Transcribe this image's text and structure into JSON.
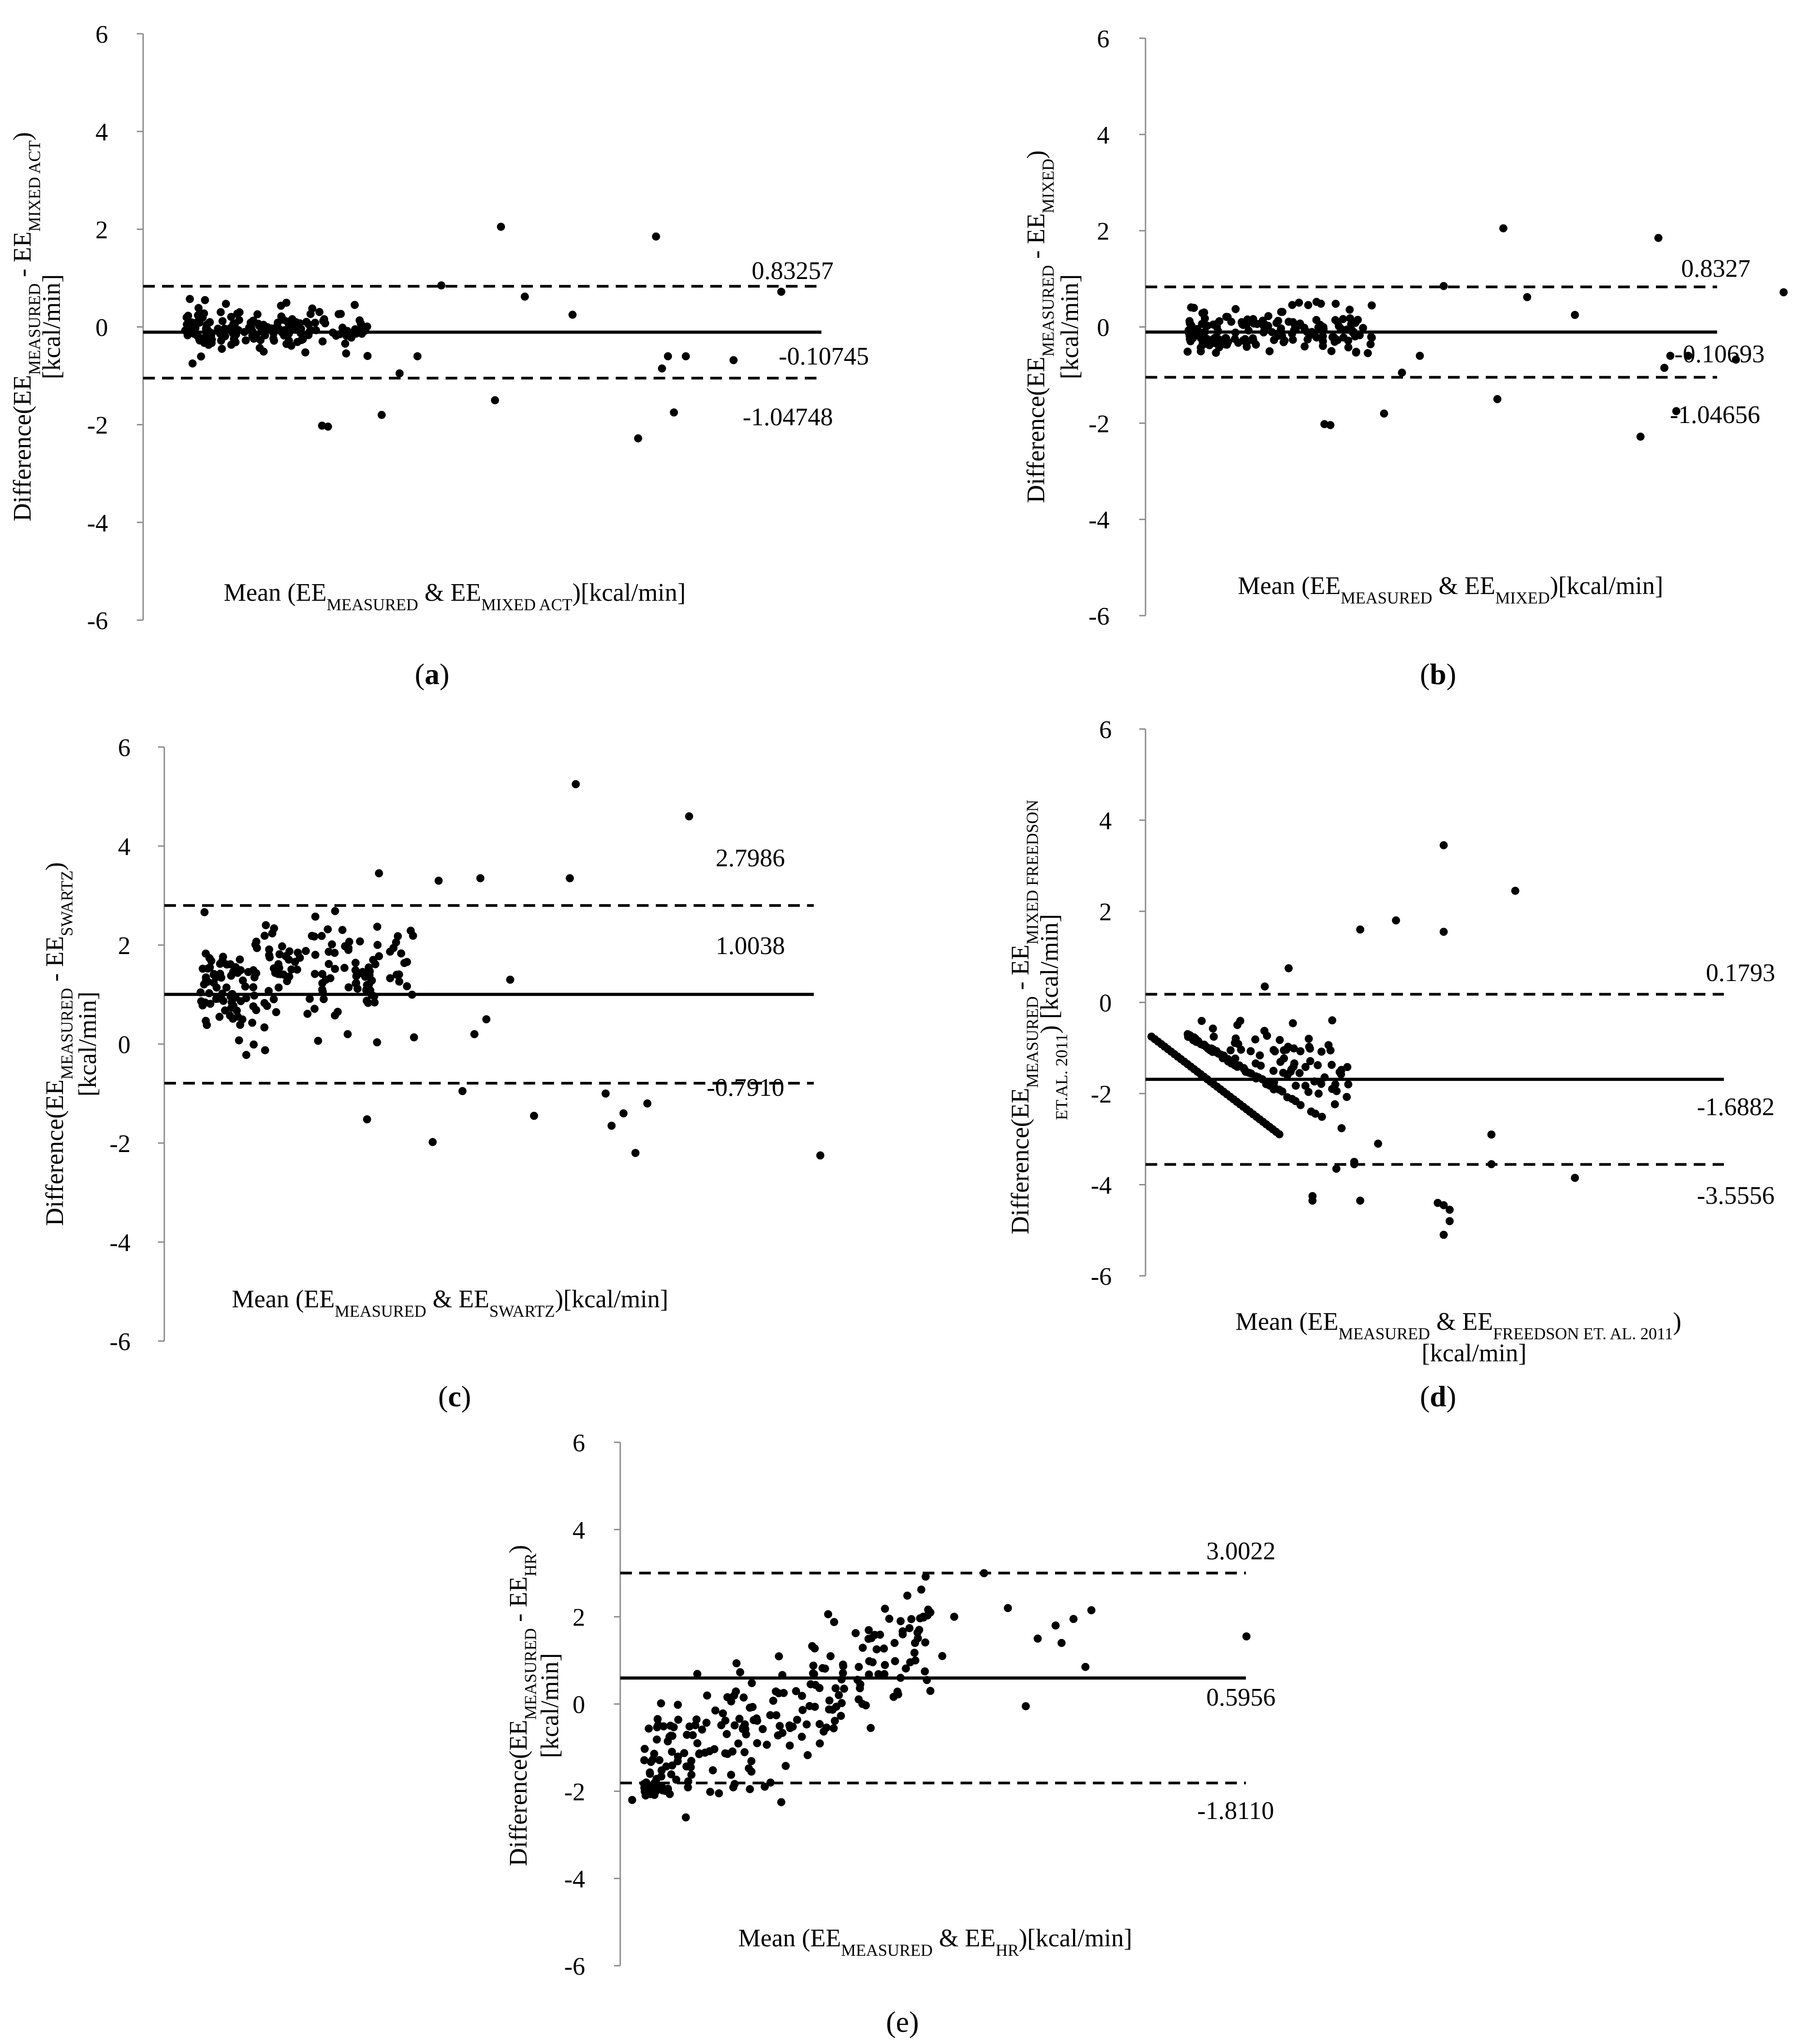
{
  "chart_data": [
    {
      "id": "a",
      "type": "scatter",
      "caption": "a",
      "y_ticks": [
        "6",
        "4",
        "2",
        "0",
        "-2",
        "-4",
        "-6"
      ],
      "ylim": [
        -6,
        6
      ],
      "y_label": {
        "line1_pre": "Difference(EE",
        "line1_sub1": "MEASURED",
        "line1_mid": " - EE",
        "line1_sub2": "MIXED ACT",
        "line1_post": ")",
        "line2": "[kcal/min]"
      },
      "x_label": {
        "pre": "Mean (EE",
        "sub1": "MEASURED",
        "mid": " & EE",
        "sub2": "MIXED ACT",
        "post": ")[kcal/min]"
      },
      "mean_diff": -0.10745,
      "upper_loa": 0.83257,
      "lower_loa": -1.04748,
      "mean_label": "-0.10745",
      "upper_label": "0.83257",
      "lower_label": "-1.04748",
      "cluster": {
        "x0": 0.35,
        "x1": 1.9,
        "center": -0.05,
        "spread": 0.55,
        "count": 170,
        "seed": 11
      },
      "points": [
        [
          3.0,
          2.05
        ],
        [
          4.3,
          1.85
        ],
        [
          5.35,
          0.72
        ],
        [
          1.5,
          -2.02
        ],
        [
          1.55,
          -2.04
        ],
        [
          2.0,
          -1.8
        ],
        [
          2.95,
          -1.5
        ],
        [
          4.15,
          -2.28
        ],
        [
          4.45,
          -1.75
        ],
        [
          4.55,
          -0.6
        ],
        [
          4.4,
          -0.6
        ],
        [
          4.95,
          -0.68
        ],
        [
          4.35,
          -0.85
        ],
        [
          3.2,
          0.62
        ],
        [
          2.5,
          0.85
        ],
        [
          3.6,
          0.25
        ],
        [
          2.3,
          -0.6
        ],
        [
          2.15,
          -0.95
        ]
      ]
    },
    {
      "id": "b",
      "type": "scatter",
      "caption": "b",
      "y_ticks": [
        "6",
        "4",
        "2",
        "0",
        "-2",
        "-4",
        "-6"
      ],
      "ylim": [
        -6,
        6
      ],
      "y_label": {
        "line1_pre": "Difference(EE",
        "line1_sub1": "MEASURED",
        "line1_mid": " - EE",
        "line1_sub2": "MIXED",
        "line1_post": ")",
        "line2": "[kcal/min]"
      },
      "x_label": {
        "pre": "Mean (EE",
        "sub1": "MEASURED",
        "mid": " & EE",
        "sub2": "MIXED",
        "post": ")[kcal/min]"
      },
      "mean_diff": -0.10693,
      "upper_loa": 0.8327,
      "lower_loa": -1.04656,
      "mean_label": "-0.10693",
      "upper_label": "0.8327",
      "lower_label": "-1.04656",
      "cluster": {
        "x0": 0.35,
        "x1": 1.9,
        "center": -0.05,
        "spread": 0.55,
        "count": 170,
        "seed": 23
      },
      "points": [
        [
          3.0,
          2.05
        ],
        [
          4.3,
          1.85
        ],
        [
          5.35,
          0.72
        ],
        [
          1.5,
          -2.02
        ],
        [
          1.55,
          -2.04
        ],
        [
          2.0,
          -1.8
        ],
        [
          2.95,
          -1.5
        ],
        [
          4.15,
          -2.28
        ],
        [
          4.45,
          -1.75
        ],
        [
          4.55,
          -0.6
        ],
        [
          4.4,
          -0.6
        ],
        [
          4.95,
          -0.68
        ],
        [
          4.35,
          -0.85
        ],
        [
          3.2,
          0.62
        ],
        [
          2.5,
          0.85
        ],
        [
          3.6,
          0.25
        ],
        [
          2.3,
          -0.6
        ],
        [
          2.15,
          -0.95
        ]
      ]
    },
    {
      "id": "c",
      "type": "scatter",
      "caption": "c",
      "y_ticks": [
        "6",
        "4",
        "2",
        "0",
        "-2",
        "-4",
        "-6"
      ],
      "ylim": [
        -6,
        6
      ],
      "y_label": {
        "line1_pre": "Difference(EE",
        "line1_sub1": "MEASURED",
        "line1_mid": " - EE",
        "line1_sub2": "SWARTZ",
        "line1_post": ")",
        "line2": "[kcal/min]"
      },
      "x_label": {
        "pre": "Mean (EE",
        "sub1": "MEASURED",
        "mid": " & EE",
        "sub2": "SWARTZ",
        "post": ")[kcal/min]"
      },
      "mean_diff": 1.0038,
      "upper_loa": 2.7986,
      "lower_loa": -0.791,
      "mean_label": "1.0038",
      "upper_label": "2.7986",
      "lower_label": "-0.7910",
      "cluster": {
        "x0": 0.3,
        "x1": 2.1,
        "center": 1.1,
        "spread": 1.4,
        "count": 190,
        "seed": 37
      },
      "points": [
        [
          3.45,
          5.25
        ],
        [
          4.4,
          4.6
        ],
        [
          3.4,
          3.35
        ],
        [
          2.3,
          3.3
        ],
        [
          2.65,
          3.35
        ],
        [
          1.8,
          3.45
        ],
        [
          5.5,
          -2.25
        ],
        [
          3.95,
          -2.2
        ],
        [
          2.25,
          -1.98
        ],
        [
          1.7,
          -1.52
        ],
        [
          3.1,
          -1.45
        ],
        [
          3.7,
          -1.0
        ],
        [
          3.75,
          -1.65
        ],
        [
          3.85,
          -1.4
        ],
        [
          4.05,
          -1.2
        ],
        [
          2.9,
          1.3
        ],
        [
          2.7,
          0.5
        ],
        [
          2.5,
          -0.95
        ],
        [
          2.6,
          0.2
        ]
      ]
    },
    {
      "id": "d",
      "type": "scatter",
      "caption": "d",
      "y_ticks": [
        "6",
        "4",
        "2",
        "0",
        "-2",
        "-4",
        "-6"
      ],
      "ylim": [
        -6,
        6
      ],
      "y_label": {
        "line1_pre": "Difference(EE",
        "line1_sub1": "MEASURED",
        "line1_mid": " - EE",
        "line1_sub2": "MIXED FREEDSON",
        "line1_post": "",
        "line2_sub": "ET.AL. 2011",
        "line2": ") [kcal/min]"
      },
      "x_label": {
        "pre": "Mean (EE",
        "sub1": "MEASURED",
        "mid": " & EE",
        "sub2": "FREEDSON ET. AL. 2011",
        "post": ")",
        "line2": "[kcal/min]"
      },
      "mean_diff": -1.6882,
      "upper_loa": 0.1793,
      "lower_loa": -3.5556,
      "mean_label": "-1.6882",
      "upper_label": "0.1793",
      "lower_label": "-3.5556",
      "cluster": {
        "x0": 0.35,
        "x1": 1.7,
        "center": -1.5,
        "spread": 1.2,
        "count": 150,
        "seed": 53
      },
      "points": [
        [
          2.5,
          3.45
        ],
        [
          3.1,
          2.45
        ],
        [
          2.5,
          1.55
        ],
        [
          1.8,
          1.6
        ],
        [
          2.1,
          1.8
        ],
        [
          1.2,
          0.75
        ],
        [
          1.0,
          0.35
        ],
        [
          3.6,
          -3.85
        ],
        [
          2.45,
          -4.4
        ],
        [
          2.5,
          -4.45
        ],
        [
          2.55,
          -4.8
        ],
        [
          2.5,
          -5.1
        ],
        [
          2.55,
          -4.55
        ],
        [
          2.9,
          -3.55
        ],
        [
          2.9,
          -2.9
        ],
        [
          1.8,
          -4.35
        ],
        [
          1.4,
          -4.25
        ],
        [
          1.4,
          -4.35
        ],
        [
          1.6,
          -3.65
        ],
        [
          1.95,
          -3.1
        ],
        [
          1.75,
          -3.5
        ],
        [
          1.75,
          -3.55
        ]
      ]
    },
    {
      "id": "e",
      "type": "scatter",
      "caption": "e",
      "y_ticks": [
        "6",
        "4",
        "2",
        "0",
        "-2",
        "-4",
        "-6"
      ],
      "ylim": [
        -6,
        6
      ],
      "y_label": {
        "line1_pre": "Difference(EE",
        "line1_sub1": "MEASURED",
        "line1_mid": " - EE",
        "line1_sub2": "HR",
        "line1_post": ")",
        "line2": "[kcal/min]"
      },
      "x_label": {
        "pre": "Mean (EE",
        "sub1": "MEASURED",
        "mid": " & EE",
        "sub2": "HR",
        "post": ")[kcal/min]"
      },
      "mean_diff": 0.5956,
      "upper_loa": 3.0022,
      "lower_loa": -1.811,
      "mean_label": "0.5956",
      "upper_label": "3.0022",
      "lower_label": "-1.8110",
      "cluster": {
        "x0": 0.2,
        "x1": 2.6,
        "center": 0.6,
        "spread": 1.5,
        "count": 230,
        "seed": 71
      },
      "points": [
        [
          0.1,
          -2.2
        ],
        [
          0.55,
          -2.6
        ],
        [
          1.35,
          -2.25
        ],
        [
          1.1,
          -1.55
        ],
        [
          3.4,
          -0.05
        ],
        [
          3.25,
          2.2
        ],
        [
          3.5,
          1.5
        ],
        [
          3.65,
          1.8
        ],
        [
          3.7,
          1.4
        ],
        [
          3.8,
          1.95
        ],
        [
          3.95,
          2.15
        ],
        [
          3.9,
          0.85
        ],
        [
          5.25,
          1.55
        ],
        [
          3.05,
          3.0
        ],
        [
          2.6,
          2.1
        ],
        [
          2.8,
          2.0
        ],
        [
          2.7,
          1.1
        ],
        [
          2.6,
          0.3
        ],
        [
          2.3,
          1.4
        ],
        [
          2.35,
          0.6
        ],
        [
          2.1,
          -0.55
        ]
      ]
    }
  ]
}
